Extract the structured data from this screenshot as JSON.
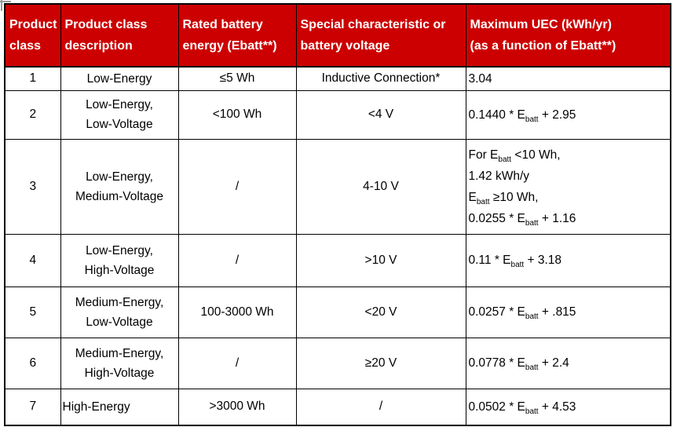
{
  "colors": {
    "header_bg": "#CC0000",
    "header_text": "#FFFFFF",
    "body_text": "#000000",
    "border": "#000000"
  },
  "table": {
    "header": {
      "columns": [
        {
          "lines": [
            "Product",
            "class"
          ]
        },
        {
          "lines": [
            "Product class",
            "description"
          ]
        },
        {
          "lines": [
            "Rated battery",
            "energy (Ebatt**)"
          ]
        },
        {
          "lines": [
            "Special characteristic or",
            "battery voltage"
          ]
        },
        {
          "lines": [
            "Maximum UEC (kWh/yr)",
            "(as a function of Ebatt**)"
          ]
        }
      ]
    },
    "rows": [
      {
        "product_class": "1",
        "description": [
          "Low-Energy"
        ],
        "battery_energy": "≤5 Wh",
        "voltage": "Inductive Connection*",
        "max_uec": [
          [
            "3.04"
          ]
        ]
      },
      {
        "product_class": "2",
        "description": [
          "Low-Energy,",
          "Low-Voltage"
        ],
        "battery_energy": "<100 Wh",
        "voltage": "<4 V",
        "max_uec": [
          [
            "0.1440 * E",
            {
              "sub": "batt"
            },
            " + 2.95"
          ]
        ]
      },
      {
        "product_class": "3",
        "description": [
          "Low-Energy,",
          "Medium-Voltage"
        ],
        "battery_energy": "/",
        "voltage": "4-10 V",
        "max_uec": [
          [
            "For E",
            {
              "sub": "batt"
            },
            " <10 Wh,"
          ],
          [
            "1.42 kWh/y"
          ],
          [
            "E",
            {
              "sub": "batt"
            },
            " ≥10 Wh,"
          ],
          [
            "0.0255 * E",
            {
              "sub": "batt"
            },
            " + 1.16"
          ]
        ]
      },
      {
        "product_class": "4",
        "description": [
          "Low-Energy,",
          "High-Voltage"
        ],
        "battery_energy": "/",
        "voltage": ">10 V",
        "max_uec": [
          [
            "0.11 * E",
            {
              "sub": "batt"
            },
            " + 3.18"
          ]
        ]
      },
      {
        "product_class": "5",
        "description": [
          "Medium-Energy,",
          "Low-Voltage"
        ],
        "battery_energy": "100-3000 Wh",
        "voltage": "<20 V",
        "max_uec": [
          [
            "0.0257 * E",
            {
              "sub": "batt"
            },
            " + .815"
          ]
        ]
      },
      {
        "product_class": "6",
        "description": [
          "Medium-Energy,",
          "High-Voltage"
        ],
        "battery_energy": "/",
        "voltage": "≥20 V",
        "max_uec": [
          [
            "0.0778 * E",
            {
              "sub": "batt"
            },
            " + 2.4"
          ]
        ]
      },
      {
        "product_class": "7",
        "description": [
          "High-Energy"
        ],
        "battery_energy": ">3000 Wh",
        "voltage": "/",
        "max_uec": [
          [
            "0.0502 * E",
            {
              "sub": "batt"
            },
            " + 4.53"
          ]
        ]
      }
    ]
  }
}
